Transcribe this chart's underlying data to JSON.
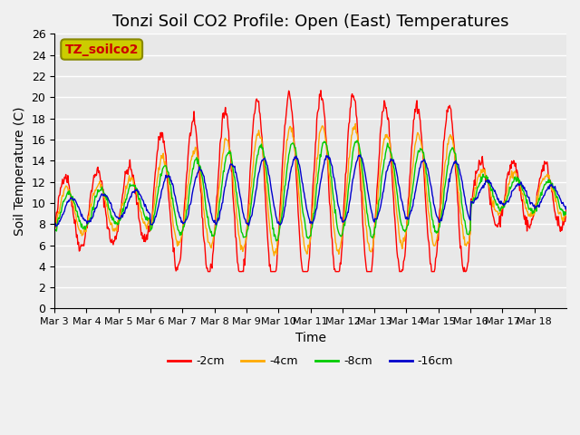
{
  "title": "Tonzi Soil CO2 Profile: Open (East) Temperatures",
  "xlabel": "Time",
  "ylabel": "Soil Temperature (C)",
  "ylim": [
    0,
    26
  ],
  "yticks": [
    0,
    2,
    4,
    6,
    8,
    10,
    12,
    14,
    16,
    18,
    20,
    22,
    24,
    26
  ],
  "xtick_labels": [
    "Mar 3",
    "Mar 4",
    "Mar 5",
    "Mar 6",
    "Mar 7",
    "Mar 8",
    "Mar 9",
    "Mar 10",
    "Mar 11",
    "Mar 12",
    "Mar 13",
    "Mar 14",
    "Mar 15",
    "Mar 16",
    "Mar 17",
    "Mar 18"
  ],
  "line_colors": [
    "#ff0000",
    "#ffaa00",
    "#00cc00",
    "#0000cc"
  ],
  "line_labels": [
    "-2cm",
    "-4cm",
    "-8cm",
    "-16cm"
  ],
  "legend_label": "TZ_soilco2",
  "legend_color": "#cccc00",
  "legend_text_color": "#cc0000",
  "plot_bg_color": "#e8e8e8",
  "fig_bg_color": "#f0f0f0",
  "grid_color": "#ffffff",
  "title_fontsize": 13,
  "axis_fontsize": 10,
  "tick_fontsize": 9
}
